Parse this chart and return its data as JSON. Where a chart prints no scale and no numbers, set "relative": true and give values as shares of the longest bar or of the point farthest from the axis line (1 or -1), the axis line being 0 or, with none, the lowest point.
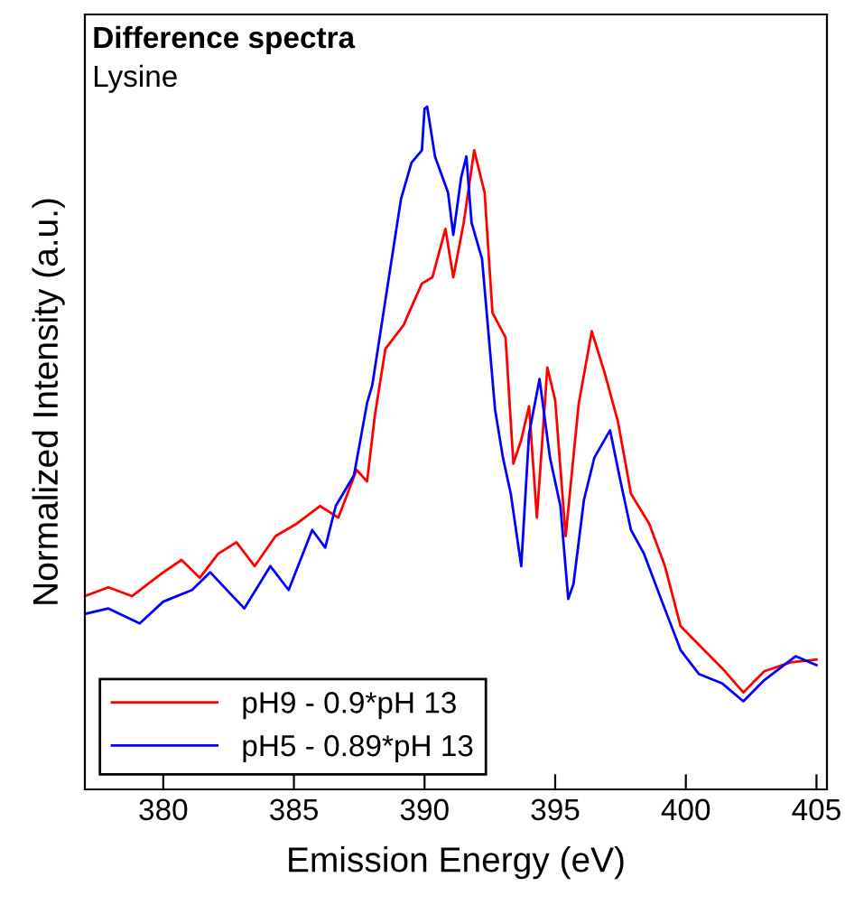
{
  "chart_data": {
    "type": "line",
    "title": "Difference spectra",
    "subtitle": "Lysine",
    "xlabel": "Emission Energy (eV)",
    "ylabel": "Normalized Intensity (a.u.)",
    "relative": true,
    "xlim": [
      377,
      405.4
    ],
    "xticks": [
      380,
      385,
      390,
      395,
      400,
      405
    ],
    "legend": "bottom left",
    "grid": false,
    "series": [
      {
        "name": "pH9 - 0.9*pH 13",
        "color": "#ff0000",
        "x": [
          377.0,
          377.9,
          378.8,
          380.0,
          380.7,
          381.4,
          382.1,
          382.8,
          383.5,
          384.3,
          385.1,
          386.0,
          386.7,
          387.4,
          387.8,
          388.1,
          388.5,
          389.2,
          389.4,
          389.9,
          390.3,
          390.8,
          391.1,
          391.5,
          391.9,
          392.3,
          392.6,
          393.1,
          393.4,
          393.7,
          394.0,
          394.3,
          394.7,
          395.0,
          395.4,
          395.9,
          396.4,
          396.9,
          397.4,
          397.9,
          398.6,
          399.2,
          399.8,
          400.7,
          401.4,
          402.2,
          403.0,
          404.0,
          405.0
        ],
        "values": [
          0.283,
          0.296,
          0.283,
          0.318,
          0.336,
          0.31,
          0.345,
          0.362,
          0.327,
          0.371,
          0.389,
          0.415,
          0.398,
          0.468,
          0.451,
          0.548,
          0.645,
          0.68,
          0.698,
          0.741,
          0.75,
          0.821,
          0.75,
          0.83,
          0.936,
          0.874,
          0.698,
          0.662,
          0.477,
          0.512,
          0.561,
          0.398,
          0.618,
          0.57,
          0.371,
          0.565,
          0.671,
          0.609,
          0.539,
          0.433,
          0.389,
          0.327,
          0.239,
          0.204,
          0.177,
          0.142,
          0.173,
          0.186,
          0.19
        ]
      },
      {
        "name": "pH5 - 0.89*pH 13",
        "color": "#0000ff",
        "x": [
          377.0,
          377.9,
          379.1,
          380.0,
          381.1,
          381.8,
          383.1,
          384.1,
          384.8,
          385.7,
          386.2,
          386.6,
          387.3,
          387.8,
          388.0,
          388.6,
          389.1,
          389.5,
          389.9,
          390.0,
          390.1,
          390.4,
          390.9,
          391.1,
          391.4,
          391.6,
          391.8,
          392.2,
          392.4,
          392.7,
          393.0,
          393.3,
          393.7,
          394.0,
          394.4,
          394.8,
          395.2,
          395.5,
          395.7,
          396.1,
          396.5,
          397.1,
          397.5,
          397.9,
          398.4,
          399.1,
          399.8,
          400.5,
          401.4,
          402.2,
          403.0,
          404.2,
          405.0
        ],
        "values": [
          0.257,
          0.265,
          0.243,
          0.275,
          0.292,
          0.318,
          0.265,
          0.327,
          0.292,
          0.38,
          0.354,
          0.415,
          0.46,
          0.566,
          0.592,
          0.741,
          0.865,
          0.918,
          0.936,
          0.997,
          1.0,
          0.927,
          0.874,
          0.812,
          0.896,
          0.927,
          0.83,
          0.777,
          0.689,
          0.556,
          0.486,
          0.433,
          0.327,
          0.521,
          0.601,
          0.486,
          0.415,
          0.279,
          0.301,
          0.424,
          0.486,
          0.526,
          0.451,
          0.38,
          0.345,
          0.274,
          0.204,
          0.169,
          0.155,
          0.129,
          0.16,
          0.195,
          0.182
        ]
      }
    ]
  }
}
